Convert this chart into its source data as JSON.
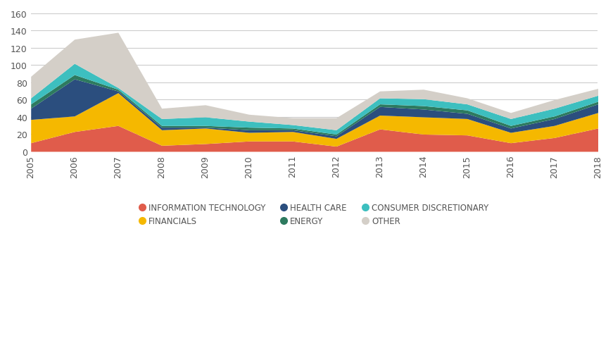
{
  "years": [
    2005,
    2006,
    2007,
    2008,
    2009,
    2010,
    2011,
    2012,
    2013,
    2014,
    2015,
    2016,
    2017,
    2018
  ],
  "series": {
    "INFORMATION TECHNOLOGY": [
      10,
      23,
      30,
      7,
      9,
      12,
      12,
      6,
      26,
      20,
      19,
      10,
      16,
      27
    ],
    "FINANCIALS": [
      27,
      18,
      38,
      18,
      18,
      10,
      11,
      9,
      16,
      20,
      19,
      12,
      14,
      18
    ],
    "HEALTH CARE": [
      13,
      43,
      2,
      3,
      1,
      3,
      2,
      3,
      10,
      9,
      6,
      5,
      8,
      10
    ],
    "ENERGY": [
      5,
      5,
      2,
      2,
      2,
      3,
      2,
      2,
      3,
      4,
      4,
      3,
      3,
      3
    ],
    "CONSUMER DISCRETIONARY": [
      7,
      13,
      2,
      8,
      10,
      7,
      4,
      5,
      7,
      8,
      7,
      8,
      9,
      7
    ],
    "OTHER": [
      25,
      28,
      64,
      12,
      14,
      8,
      8,
      14,
      8,
      11,
      7,
      7,
      10,
      8
    ]
  },
  "colors": {
    "INFORMATION TECHNOLOGY": "#e05c4b",
    "FINANCIALS": "#f5b800",
    "HEALTH CARE": "#2b4e7e",
    "ENERGY": "#2d7a5f",
    "CONSUMER DISCRETIONARY": "#3dbfbf",
    "OTHER": "#d4cfc8"
  },
  "ylim": [
    0,
    160
  ],
  "yticks": [
    0,
    20,
    40,
    60,
    80,
    100,
    120,
    140,
    160
  ],
  "stack_order": [
    "INFORMATION TECHNOLOGY",
    "FINANCIALS",
    "HEALTH CARE",
    "ENERGY",
    "CONSUMER DISCRETIONARY",
    "OTHER"
  ],
  "legend_order": [
    "INFORMATION TECHNOLOGY",
    "FINANCIALS",
    "HEALTH CARE",
    "ENERGY",
    "CONSUMER DISCRETIONARY",
    "OTHER"
  ]
}
